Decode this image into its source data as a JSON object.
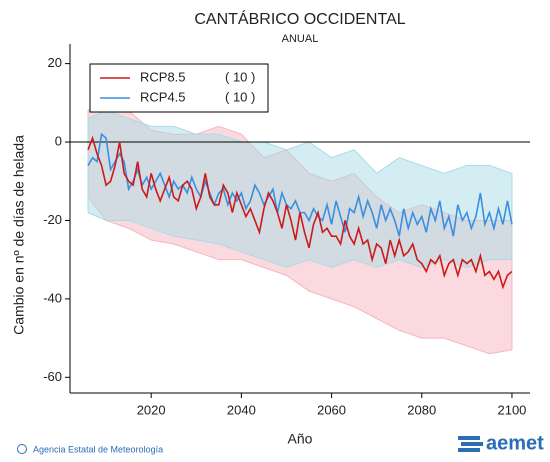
{
  "chart_data": {
    "type": "line",
    "title": "CANTÁBRICO OCCIDENTAL",
    "subtitle": "ANUAL",
    "y_label": "Cambio en nº de días de helada",
    "x_label": "Año",
    "footer": "Agencia Estatal de Meteorología",
    "logo": "aemet",
    "xlim": [
      2002,
      2104
    ],
    "ylim": [
      -64,
      25
    ],
    "xticks": [
      2020,
      2040,
      2060,
      2080,
      2100
    ],
    "yticks": [
      -60,
      -40,
      -20,
      0,
      20
    ],
    "reference_line": 0,
    "legend": "top-left",
    "x": [
      2006,
      2007,
      2008,
      2009,
      2010,
      2011,
      2012,
      2013,
      2014,
      2015,
      2016,
      2017,
      2018,
      2019,
      2020,
      2021,
      2022,
      2023,
      2024,
      2025,
      2026,
      2027,
      2028,
      2029,
      2030,
      2031,
      2032,
      2033,
      2034,
      2035,
      2036,
      2037,
      2038,
      2039,
      2040,
      2041,
      2042,
      2043,
      2044,
      2045,
      2046,
      2047,
      2048,
      2049,
      2050,
      2051,
      2052,
      2053,
      2054,
      2055,
      2056,
      2057,
      2058,
      2059,
      2060,
      2061,
      2062,
      2063,
      2064,
      2065,
      2066,
      2067,
      2068,
      2069,
      2070,
      2071,
      2072,
      2073,
      2074,
      2075,
      2076,
      2077,
      2078,
      2079,
      2080,
      2081,
      2082,
      2083,
      2084,
      2085,
      2086,
      2087,
      2088,
      2089,
      2090,
      2091,
      2092,
      2093,
      2094,
      2095,
      2096,
      2097,
      2098,
      2099,
      2100
    ],
    "series": [
      {
        "name": "RCP8.5",
        "count": "( 10 )",
        "color": "#cc1a1a",
        "band_color": "#f5b5c0",
        "values": [
          -2,
          1,
          -3,
          -6,
          -11,
          -10,
          -6,
          0,
          -8,
          -10,
          -11,
          -5,
          -12,
          -14,
          -8,
          -12,
          -15,
          -12,
          -9,
          -14,
          -15,
          -11,
          -10,
          -12,
          -17,
          -14,
          -8,
          -14,
          -16,
          -16,
          -11,
          -13,
          -18,
          -13,
          -16,
          -19,
          -17,
          -20,
          -23,
          -17,
          -13,
          -15,
          -18,
          -22,
          -16,
          -20,
          -25,
          -18,
          -23,
          -27,
          -21,
          -18,
          -23,
          -22,
          -24,
          -24,
          -26,
          -20,
          -24,
          -26,
          -22,
          -26,
          -25,
          -30,
          -26,
          -27,
          -31,
          -25,
          -29,
          -25,
          -29,
          -28,
          -26,
          -30,
          -31,
          -33,
          -30,
          -31,
          -29,
          -34,
          -31,
          -30,
          -34,
          -30,
          -31,
          -30,
          -33,
          -29,
          -34,
          -33,
          -35,
          -33,
          -37,
          -34,
          -33
        ],
        "band": {
          "x": [
            2006,
            2010,
            2015,
            2020,
            2025,
            2030,
            2035,
            2040,
            2045,
            2050,
            2055,
            2060,
            2065,
            2070,
            2075,
            2080,
            2085,
            2090,
            2095,
            2100
          ],
          "upper": [
            8,
            12,
            8,
            3,
            2,
            2,
            4,
            2,
            -4,
            -2,
            -8,
            -10,
            -8,
            -14,
            -18,
            -16,
            -18,
            -20,
            -20,
            -20
          ],
          "lower": [
            -14,
            -20,
            -22,
            -25,
            -26,
            -28,
            -30,
            -30,
            -32,
            -34,
            -38,
            -40,
            -42,
            -45,
            -48,
            -50,
            -50,
            -52,
            -54,
            -53
          ]
        }
      },
      {
        "name": "RCP4.5",
        "count": "( 10 )",
        "color": "#3a8fe0",
        "band_color": "#a9dbe6",
        "values": [
          -6,
          -4,
          -5,
          2,
          1,
          -7,
          -5,
          -3,
          -5,
          -12,
          -10,
          -7,
          -11,
          -9,
          -12,
          -10,
          -8,
          -11,
          -14,
          -10,
          -12,
          -11,
          -13,
          -9,
          -12,
          -14,
          -10,
          -13,
          -16,
          -13,
          -12,
          -16,
          -13,
          -15,
          -13,
          -17,
          -15,
          -11,
          -13,
          -16,
          -14,
          -12,
          -18,
          -13,
          -16,
          -17,
          -15,
          -18,
          -18,
          -20,
          -17,
          -19,
          -20,
          -16,
          -21,
          -15,
          -19,
          -23,
          -17,
          -18,
          -14,
          -19,
          -15,
          -18,
          -22,
          -16,
          -20,
          -17,
          -20,
          -24,
          -17,
          -22,
          -18,
          -21,
          -19,
          -23,
          -17,
          -20,
          -15,
          -22,
          -19,
          -24,
          -16,
          -20,
          -18,
          -22,
          -19,
          -13,
          -21,
          -18,
          -22,
          -17,
          -21,
          -15,
          -21
        ],
        "band": {
          "x": [
            2006,
            2010,
            2015,
            2020,
            2025,
            2030,
            2035,
            2040,
            2045,
            2050,
            2055,
            2060,
            2065,
            2070,
            2075,
            2080,
            2085,
            2090,
            2095,
            2100
          ],
          "upper": [
            6,
            8,
            6,
            4,
            4,
            2,
            2,
            0,
            0,
            -2,
            0,
            -4,
            -2,
            -8,
            -4,
            -6,
            -8,
            -6,
            -6,
            -8
          ],
          "lower": [
            -18,
            -20,
            -20,
            -22,
            -24,
            -25,
            -26,
            -28,
            -30,
            -32,
            -30,
            -32,
            -30,
            -32,
            -30,
            -32,
            -30,
            -32,
            -30,
            -30
          ]
        }
      }
    ]
  }
}
